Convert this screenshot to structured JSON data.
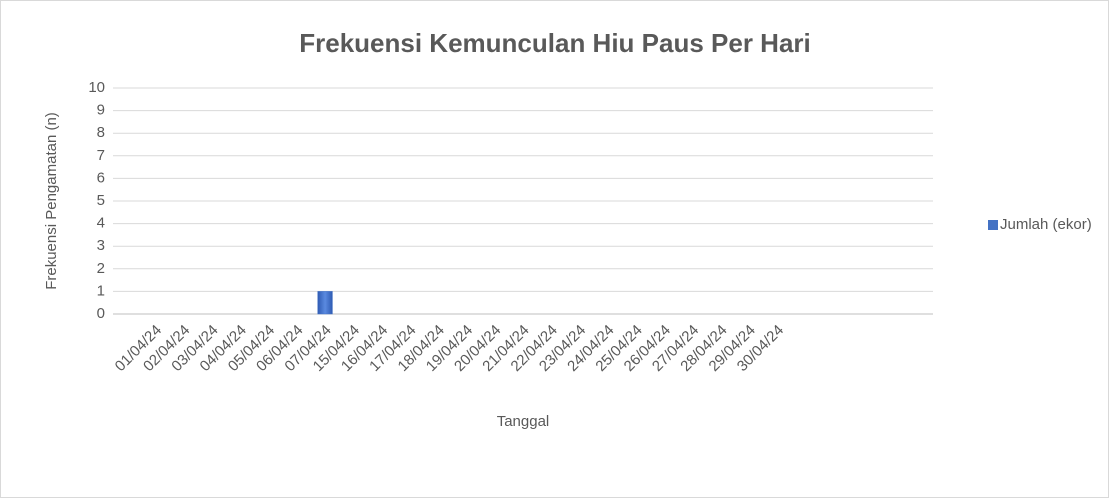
{
  "chart_data": {
    "type": "bar",
    "title": "Frekuensi Kemunculan Hiu Paus Per Hari",
    "x_label": "Tanggal",
    "y_label": "Frekuensi Pengamatan (n)",
    "categories": [
      null,
      "01/04/24",
      "02/04/24",
      "03/04/24",
      "04/04/24",
      "05/04/24",
      "06/04/24",
      "07/04/24",
      "15/04/24",
      "16/04/24",
      "17/04/24",
      "18/04/24",
      "19/04/24",
      "20/04/24",
      "21/04/24",
      "22/04/24",
      "23/04/24",
      "24/04/24",
      "25/04/24",
      "26/04/24",
      "27/04/24",
      "28/04/24",
      "29/04/24",
      "30/04/24",
      null,
      null,
      null,
      null,
      null
    ],
    "series": [
      {
        "name": "Jumlah (ekor)",
        "color": "#4472c4",
        "values": [
          null,
          0,
          0,
          0,
          0,
          0,
          0,
          1,
          0,
          0,
          0,
          0,
          0,
          0,
          0,
          0,
          0,
          0,
          0,
          0,
          0,
          0,
          0,
          0,
          null,
          null,
          null,
          null,
          null
        ]
      }
    ],
    "ylim": [
      0,
      10
    ],
    "yticks": [
      0,
      1,
      2,
      3,
      4,
      5,
      6,
      7,
      8,
      9,
      10
    ],
    "grid": true,
    "legend": "right"
  }
}
